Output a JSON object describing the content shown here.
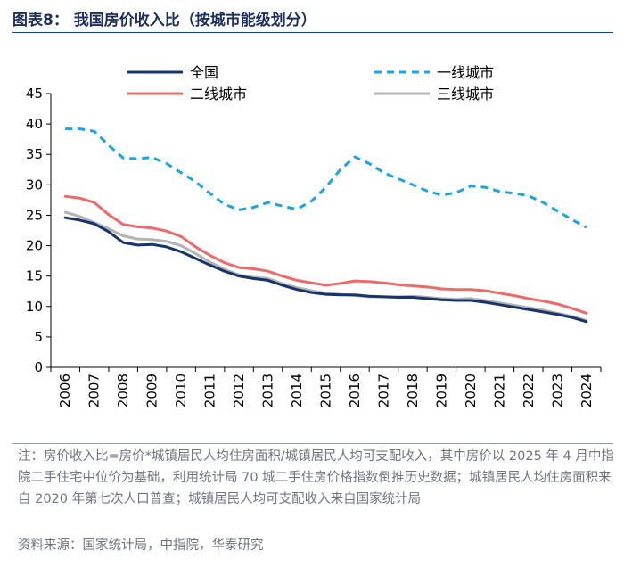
{
  "header": {
    "title": "图表8：  我国房价收入比（按城市能级划分）"
  },
  "footer": {
    "note": "注：房价收入比=房价*城镇居民人均住房面积/城镇居民人均可支配收入，其中房价以 2025 年 4 月中指院二手住宅中位价为基础，利用统计局 70 城二手住房价格指数倒推历史数据；城镇居民人均住房面积来自 2020 年第七次人口普查；城镇居民人均可支配收入来自国家统计局",
    "source": "资料来源：国家统计局，中指院，华泰研究"
  },
  "chart_data": {
    "type": "line",
    "title": "我国房价收入比（按城市能级划分）",
    "xlabel": "",
    "ylabel": "",
    "ylim": [
      0,
      45
    ],
    "yticks": [
      0,
      5,
      10,
      15,
      20,
      25,
      30,
      35,
      40,
      45
    ],
    "x": [
      2006,
      2006.5,
      2007,
      2007.5,
      2008,
      2008.5,
      2009,
      2009.5,
      2010,
      2010.5,
      2011,
      2011.5,
      2012,
      2012.5,
      2013,
      2013.5,
      2014,
      2014.5,
      2015,
      2015.5,
      2016,
      2016.5,
      2017,
      2017.5,
      2018,
      2018.5,
      2019,
      2019.5,
      2020,
      2020.5,
      2021,
      2021.5,
      2022,
      2022.5,
      2023,
      2023.5,
      2024
    ],
    "xtick_labels": [
      "2006",
      "2007",
      "2008",
      "2009",
      "2010",
      "2011",
      "2012",
      "2013",
      "2014",
      "2015",
      "2016",
      "2017",
      "2018",
      "2019",
      "2020",
      "2021",
      "2022",
      "2023",
      "2024"
    ],
    "legend_placement": "top",
    "grid": false,
    "series": [
      {
        "name": "全国",
        "color": "#16336b",
        "style": "solid",
        "values": [
          24.6,
          24.2,
          23.6,
          22.3,
          20.5,
          20.1,
          20.2,
          19.8,
          19.0,
          17.9,
          16.8,
          15.8,
          15.0,
          14.6,
          14.3,
          13.5,
          12.8,
          12.3,
          12.0,
          11.9,
          11.9,
          11.7,
          11.6,
          11.5,
          11.5,
          11.3,
          11.1,
          11.0,
          11.0,
          10.7,
          10.3,
          9.9,
          9.5,
          9.1,
          8.7,
          8.2,
          7.5
        ]
      },
      {
        "name": "一线城市",
        "color": "#1aa3e8",
        "style": "dashed",
        "values": [
          39.2,
          39.2,
          38.8,
          36.5,
          34.4,
          34.3,
          34.5,
          33.5,
          32.0,
          30.5,
          28.6,
          26.8,
          25.9,
          26.3,
          27.1,
          26.5,
          26.0,
          27.3,
          29.6,
          32.5,
          34.6,
          33.5,
          32.0,
          31.0,
          30.0,
          29.0,
          28.3,
          28.7,
          29.8,
          29.6,
          28.9,
          28.6,
          28.2,
          27.1,
          25.7,
          24.3,
          23.0
        ]
      },
      {
        "name": "二线城市",
        "color": "#ee6a6a",
        "style": "solid",
        "values": [
          28.1,
          27.8,
          27.1,
          25.1,
          23.5,
          23.1,
          22.9,
          22.4,
          21.5,
          19.8,
          18.4,
          17.2,
          16.4,
          16.2,
          15.8,
          15.0,
          14.3,
          13.9,
          13.5,
          13.8,
          14.2,
          14.1,
          13.9,
          13.6,
          13.4,
          13.2,
          12.9,
          12.8,
          12.8,
          12.6,
          12.2,
          11.8,
          11.3,
          10.9,
          10.4,
          9.7,
          8.9
        ]
      },
      {
        "name": "三线城市",
        "color": "#b3b3b3",
        "style": "solid",
        "values": [
          25.5,
          24.8,
          23.8,
          22.8,
          21.6,
          21.1,
          21.0,
          20.7,
          20.0,
          18.7,
          17.3,
          16.1,
          15.2,
          14.8,
          14.6,
          13.8,
          13.1,
          12.6,
          12.2,
          12.0,
          11.8,
          11.6,
          11.6,
          11.6,
          11.7,
          11.5,
          11.3,
          11.2,
          11.3,
          11.0,
          10.6,
          10.2,
          9.8,
          9.4,
          8.9,
          8.4,
          7.7
        ]
      }
    ]
  }
}
